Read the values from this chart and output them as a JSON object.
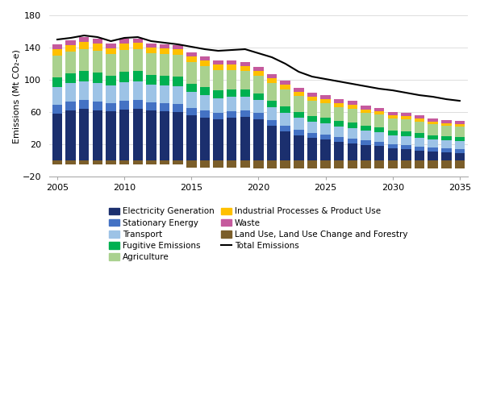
{
  "years": [
    2005,
    2006,
    2007,
    2008,
    2009,
    2010,
    2011,
    2012,
    2013,
    2014,
    2015,
    2016,
    2017,
    2018,
    2019,
    2020,
    2021,
    2022,
    2023,
    2024,
    2025,
    2026,
    2027,
    2028,
    2029,
    2030,
    2031,
    2032,
    2033,
    2034,
    2035
  ],
  "electricity_generation": [
    58,
    62,
    64,
    62,
    61,
    63,
    64,
    62,
    61,
    60,
    56,
    53,
    51,
    53,
    54,
    51,
    43,
    36,
    31,
    28,
    26,
    23,
    21,
    19,
    18,
    15,
    14,
    12,
    11,
    10,
    9
  ],
  "stationary_energy": [
    11,
    11,
    11,
    11,
    10,
    11,
    11,
    10,
    10,
    10,
    9,
    9,
    8,
    8,
    8,
    8,
    7,
    7,
    7,
    6,
    6,
    6,
    6,
    6,
    5,
    5,
    5,
    5,
    5,
    5,
    5
  ],
  "transport": [
    22,
    23,
    23,
    23,
    22,
    23,
    23,
    22,
    22,
    22,
    20,
    19,
    18,
    18,
    17,
    16,
    16,
    16,
    15,
    14,
    14,
    13,
    13,
    12,
    12,
    11,
    11,
    11,
    10,
    10,
    10
  ],
  "fugitive_emissions": [
    12,
    12,
    13,
    13,
    12,
    13,
    13,
    12,
    12,
    12,
    10,
    10,
    10,
    9,
    9,
    8,
    8,
    8,
    7,
    7,
    7,
    7,
    7,
    6,
    6,
    6,
    6,
    6,
    5,
    5,
    5
  ],
  "agriculture": [
    27,
    27,
    27,
    27,
    27,
    27,
    27,
    27,
    27,
    27,
    27,
    26,
    25,
    24,
    23,
    22,
    22,
    21,
    20,
    19,
    18,
    17,
    17,
    16,
    16,
    15,
    15,
    14,
    14,
    13,
    13
  ],
  "industrial_processes": [
    8,
    8,
    9,
    9,
    7,
    8,
    8,
    7,
    7,
    7,
    7,
    7,
    7,
    7,
    6,
    6,
    6,
    6,
    5,
    5,
    5,
    5,
    5,
    4,
    4,
    4,
    4,
    4,
    3,
    3,
    3
  ],
  "waste": [
    6,
    6,
    6,
    6,
    6,
    6,
    5,
    5,
    5,
    5,
    5,
    5,
    5,
    5,
    5,
    5,
    5,
    5,
    5,
    5,
    5,
    5,
    5,
    5,
    4,
    4,
    4,
    4,
    4,
    4,
    4
  ],
  "land_use": [
    -5,
    -5,
    -5,
    -5,
    -5,
    -5,
    -5,
    -5,
    -5,
    -5,
    -9,
    -9,
    -9,
    -9,
    -9,
    -10,
    -10,
    -10,
    -10,
    -10,
    -10,
    -10,
    -10,
    -10,
    -10,
    -10,
    -10,
    -10,
    -10,
    -10,
    -10
  ],
  "total_emissions": [
    150,
    152,
    155,
    153,
    148,
    152,
    153,
    148,
    146,
    144,
    141,
    138,
    136,
    137,
    138,
    133,
    128,
    120,
    110,
    104,
    101,
    98,
    95,
    92,
    89,
    87,
    84,
    81,
    79,
    76,
    74
  ],
  "colors": {
    "electricity_generation": "#1b2f6e",
    "stationary_energy": "#4472c4",
    "transport": "#9dc3e6",
    "fugitive_emissions": "#00b050",
    "agriculture": "#a9d18e",
    "industrial_processes": "#ffc000",
    "waste": "#c55a9d",
    "land_use": "#7b5e2a"
  },
  "ylabel": "Emissions (Mt CO₂-e)",
  "ylim": [
    -20,
    180
  ],
  "yticks": [
    -20,
    20,
    60,
    100,
    140,
    180
  ],
  "xlim": [
    2004.4,
    2035.6
  ],
  "background_color": "#ffffff",
  "grid_color": "#d0d0d0",
  "legend_col1": [
    "electricity_generation",
    "transport",
    "agriculture",
    "waste",
    "total_emissions"
  ],
  "legend_col2": [
    "stationary_energy",
    "fugitive_emissions",
    "industrial_processes",
    "land_use"
  ],
  "legend_labels": {
    "electricity_generation": "Electricity Generation",
    "stationary_energy": "Stationary Energy",
    "transport": "Transport",
    "fugitive_emissions": "Fugitive Emissions",
    "agriculture": "Agriculture",
    "industrial_processes": "Industrial Processes & Product Use",
    "waste": "Waste",
    "land_use": "Land Use, Land Use Change and Forestry",
    "total_emissions": "Total Emissions"
  }
}
